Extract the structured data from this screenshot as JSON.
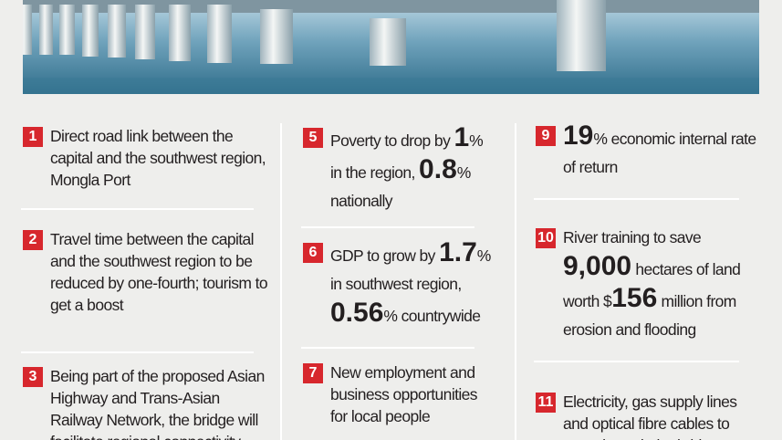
{
  "columns": [
    {
      "items": [
        {
          "number": "1",
          "parts": [
            {
              "text": "Direct road link between the capital and the southwest region, Mongla Port"
            }
          ]
        },
        {
          "number": "2",
          "parts": [
            {
              "text": "Travel time between the capital and the southwest region to be reduced by one-fourth; tourism to get a boost"
            }
          ]
        },
        {
          "number": "3",
          "parts": [
            {
              "text": "Being part of the proposed Asian Highway and Trans-Asian Railway Network, the bridge will facilitate regional connectivity"
            }
          ]
        }
      ]
    },
    {
      "items": [
        {
          "number": "5",
          "parts": [
            {
              "text": "Poverty to drop by "
            },
            {
              "emphasis": "1"
            },
            {
              "text": "% in the region, "
            },
            {
              "emphasis": "0.8"
            },
            {
              "text": "% nationally"
            }
          ]
        },
        {
          "number": "6",
          "parts": [
            {
              "text": "GDP to grow by "
            },
            {
              "emphasis": "1.7"
            },
            {
              "text": "% in southwest region, "
            },
            {
              "emphasis": "0.56"
            },
            {
              "text": "% countrywide"
            }
          ]
        },
        {
          "number": "7",
          "parts": [
            {
              "text": "New employment and business opportunities for local people"
            }
          ]
        }
      ]
    },
    {
      "items": [
        {
          "number": "9",
          "parts": [
            {
              "emphasis": "19"
            },
            {
              "text": "% economic internal rate of return"
            }
          ]
        },
        {
          "number": "10",
          "parts": [
            {
              "text": "River training to save "
            },
            {
              "emphasis": "9,000"
            },
            {
              "text": " hectares of land worth $"
            },
            {
              "emphasis": "156"
            },
            {
              "text": " million from erosion and flooding"
            }
          ]
        },
        {
          "number": "11",
          "parts": [
            {
              "text": "Electricity, gas supply lines and optical fibre cables to pass through the bridge"
            }
          ]
        }
      ]
    }
  ]
}
